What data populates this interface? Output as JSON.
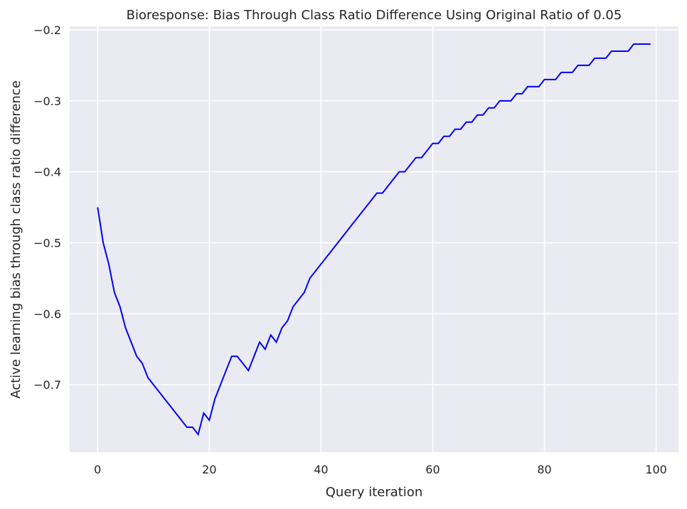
{
  "chart_data": {
    "type": "line",
    "title": "Bioresponse: Bias Through Class Ratio Difference Using Original Ratio of 0.05",
    "xlabel": "Query iteration",
    "ylabel": "Active learning bias through class ratio difference",
    "xlim": [
      -5,
      104
    ],
    "ylim": [
      -0.795,
      -0.195
    ],
    "xticks": [
      0,
      20,
      40,
      60,
      80,
      100
    ],
    "xtick_labels": [
      "0",
      "20",
      "40",
      "60",
      "80",
      "100"
    ],
    "yticks": [
      -0.7,
      -0.6,
      -0.5,
      -0.4,
      -0.3,
      -0.2
    ],
    "ytick_labels": [
      "−0.7",
      "−0.6",
      "−0.5",
      "−0.4",
      "−0.3",
      "−0.2"
    ],
    "grid": true,
    "colors": {
      "background": "#eaeaf2",
      "grid": "#ffffff",
      "line": "#0000ff"
    },
    "series": [
      {
        "x": [
          0,
          1,
          2,
          3,
          4,
          5,
          6,
          7,
          8,
          9,
          10,
          11,
          12,
          13,
          14,
          15,
          16,
          17,
          18,
          19,
          20,
          21,
          22,
          23,
          24,
          25,
          26,
          27,
          28,
          29,
          30,
          31,
          32,
          33,
          34,
          35,
          36,
          37,
          38,
          39,
          40,
          41,
          42,
          43,
          44,
          45,
          46,
          47,
          48,
          49,
          50,
          51,
          52,
          53,
          54,
          55,
          56,
          57,
          58,
          59,
          60,
          61,
          62,
          63,
          64,
          65,
          66,
          67,
          68,
          69,
          70,
          71,
          72,
          73,
          74,
          75,
          76,
          77,
          78,
          79,
          80,
          81,
          82,
          83,
          84,
          85,
          86,
          87,
          88,
          89,
          90,
          91,
          92,
          93,
          94,
          95,
          96,
          97,
          98,
          99
        ],
        "y": [
          -0.45,
          -0.5,
          -0.53,
          -0.57,
          -0.59,
          -0.62,
          -0.64,
          -0.66,
          -0.67,
          -0.69,
          -0.7,
          -0.71,
          -0.72,
          -0.73,
          -0.74,
          -0.75,
          -0.76,
          -0.76,
          -0.77,
          -0.74,
          -0.75,
          -0.72,
          -0.7,
          -0.68,
          -0.66,
          -0.66,
          -0.67,
          -0.68,
          -0.66,
          -0.64,
          -0.65,
          -0.63,
          -0.64,
          -0.62,
          -0.61,
          -0.59,
          -0.58,
          -0.57,
          -0.55,
          -0.54,
          -0.53,
          -0.52,
          -0.51,
          -0.5,
          -0.49,
          -0.48,
          -0.47,
          -0.46,
          -0.45,
          -0.44,
          -0.43,
          -0.43,
          -0.42,
          -0.41,
          -0.4,
          -0.4,
          -0.39,
          -0.38,
          -0.38,
          -0.37,
          -0.36,
          -0.36,
          -0.35,
          -0.35,
          -0.34,
          -0.34,
          -0.33,
          -0.33,
          -0.32,
          -0.32,
          -0.31,
          -0.31,
          -0.3,
          -0.3,
          -0.3,
          -0.29,
          -0.29,
          -0.28,
          -0.28,
          -0.28,
          -0.27,
          -0.27,
          -0.27,
          -0.26,
          -0.26,
          -0.26,
          -0.25,
          -0.25,
          -0.25,
          -0.24,
          -0.24,
          -0.24,
          -0.23,
          -0.23,
          -0.23,
          -0.23,
          -0.22,
          -0.22,
          -0.22,
          -0.22
        ]
      }
    ]
  }
}
